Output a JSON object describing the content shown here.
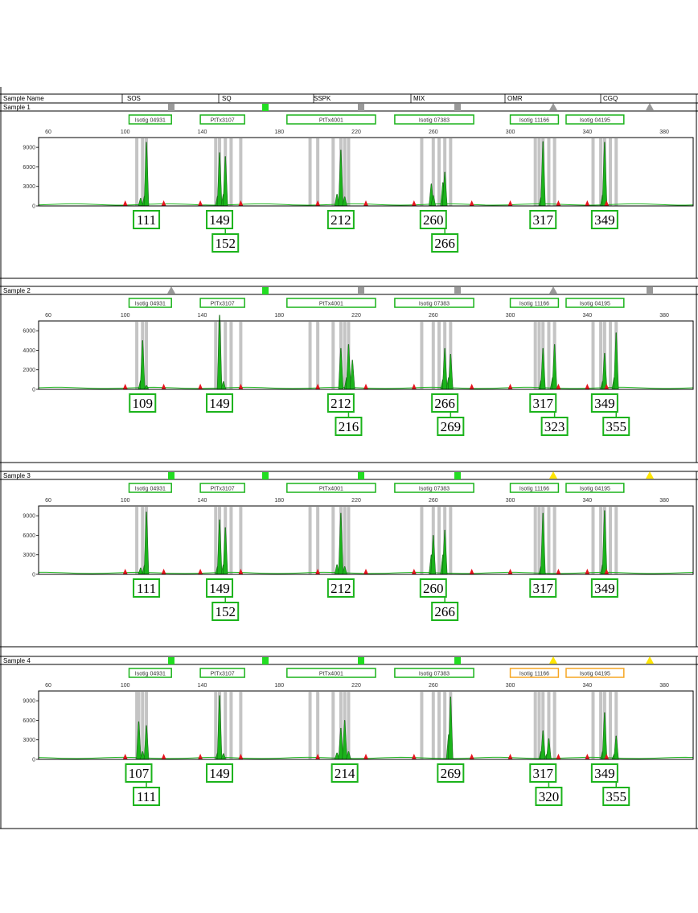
{
  "header": {
    "sample_name_label": "Sample Name",
    "markers": [
      "SOS",
      "SQ",
      "SSPK",
      "MIX",
      "OMR",
      "CGQ"
    ]
  },
  "colors": {
    "peak": "#1bb31b",
    "peak_dark": "#0a3d0a",
    "bin": "#c4c4c4",
    "size_standard": "#e8141e",
    "label_ok": "#1bb31b",
    "label_warn": "#f5a623",
    "status_green": "#22dd22",
    "status_gray": "#999999",
    "status_yellow": "#ffe600"
  },
  "chart_data": [
    {
      "type": "electropherogram",
      "sample": "Sample 1",
      "x_ticks": [
        60,
        100,
        140,
        180,
        220,
        260,
        300,
        340,
        380
      ],
      "xlim": [
        55,
        395
      ],
      "y_ticks": [
        "0",
        "3000",
        "6000",
        "9000"
      ],
      "ylim": [
        0,
        10500
      ],
      "status_flags": [
        "gray-square",
        "green-square",
        "gray-square",
        "gray-square",
        "gray-triangle",
        "gray-triangle"
      ],
      "loci": [
        {
          "label": "Isotig 04931",
          "from": 102,
          "to": 124,
          "flag": "ok"
        },
        {
          "label": "PtTx3107",
          "from": 139,
          "to": 162,
          "flag": "ok"
        },
        {
          "label": "PtTx4001",
          "from": 184,
          "to": 230,
          "flag": "ok"
        },
        {
          "label": "Isotig 07383",
          "from": 240,
          "to": 281,
          "flag": "ok"
        },
        {
          "label": "Isotig 11166",
          "from": 300,
          "to": 325,
          "flag": "ok"
        },
        {
          "label": "Isotig 04195",
          "from": 329,
          "to": 359,
          "flag": "ok"
        }
      ],
      "bins": [
        106,
        109,
        111,
        147,
        149,
        152,
        155,
        160,
        196,
        200,
        208,
        212,
        214,
        216,
        254,
        260,
        263,
        266,
        269,
        313,
        315,
        317,
        320,
        323,
        343,
        347,
        349,
        352,
        355
      ],
      "peaks": [
        [
          108,
          1200
        ],
        [
          110,
          1500
        ],
        [
          111,
          9800
        ],
        [
          148,
          1500
        ],
        [
          149,
          8200
        ],
        [
          151,
          1800
        ],
        [
          152,
          7600
        ],
        [
          210,
          1800
        ],
        [
          212,
          8600
        ],
        [
          214,
          1400
        ],
        [
          259,
          3400
        ],
        [
          260,
          1600
        ],
        [
          265,
          3600
        ],
        [
          266,
          5200
        ],
        [
          316,
          1300
        ],
        [
          317,
          9900
        ],
        [
          348,
          1700
        ],
        [
          349,
          9800
        ]
      ],
      "size_standard": [
        100,
        120,
        139,
        160,
        200,
        225,
        250,
        280,
        300,
        325,
        340,
        350
      ],
      "calls": [
        {
          "label": "111",
          "x": 111,
          "row": 0
        },
        {
          "label": "149",
          "x": 149,
          "row": 0
        },
        {
          "label": "212",
          "x": 212,
          "row": 0
        },
        {
          "label": "260",
          "x": 260,
          "row": 0
        },
        {
          "label": "317",
          "x": 317,
          "row": 0
        },
        {
          "label": "349",
          "x": 349,
          "row": 0
        },
        {
          "label": "152",
          "x": 152,
          "row": 1
        },
        {
          "label": "266",
          "x": 266,
          "row": 1
        }
      ]
    },
    {
      "type": "electropherogram",
      "sample": "Sample 2",
      "x_ticks": [
        60,
        100,
        140,
        180,
        220,
        260,
        300,
        340,
        380
      ],
      "xlim": [
        55,
        395
      ],
      "y_ticks": [
        "0",
        "2000",
        "4000",
        "6000"
      ],
      "ylim": [
        0,
        7000
      ],
      "status_flags": [
        "gray-triangle",
        "green-square",
        "gray-square",
        "gray-square",
        "gray-triangle",
        "gray-square"
      ],
      "loci": [
        {
          "label": "Isotig 04931",
          "from": 102,
          "to": 124,
          "flag": "ok"
        },
        {
          "label": "PtTx3107",
          "from": 139,
          "to": 162,
          "flag": "ok"
        },
        {
          "label": "PtTx4001",
          "from": 184,
          "to": 230,
          "flag": "ok"
        },
        {
          "label": "Isotig 07383",
          "from": 240,
          "to": 281,
          "flag": "ok"
        },
        {
          "label": "Isotig 11166",
          "from": 300,
          "to": 325,
          "flag": "ok"
        },
        {
          "label": "Isotig 04195",
          "from": 329,
          "to": 359,
          "flag": "ok"
        }
      ],
      "bins": [
        106,
        109,
        111,
        147,
        149,
        152,
        155,
        160,
        196,
        200,
        208,
        212,
        214,
        216,
        254,
        260,
        263,
        266,
        269,
        313,
        315,
        317,
        320,
        323,
        343,
        347,
        349,
        352,
        355
      ],
      "peaks": [
        [
          108,
          900
        ],
        [
          109,
          5000
        ],
        [
          111,
          400
        ],
        [
          149,
          7600
        ],
        [
          151,
          800
        ],
        [
          212,
          4200
        ],
        [
          215,
          1200
        ],
        [
          216,
          4600
        ],
        [
          218,
          3000
        ],
        [
          265,
          1000
        ],
        [
          266,
          4200
        ],
        [
          268,
          1200
        ],
        [
          269,
          3600
        ],
        [
          316,
          900
        ],
        [
          317,
          4200
        ],
        [
          322,
          1200
        ],
        [
          323,
          4600
        ],
        [
          348,
          800
        ],
        [
          349,
          3700
        ],
        [
          354,
          1200
        ],
        [
          355,
          5800
        ]
      ],
      "size_standard": [
        100,
        120,
        139,
        160,
        200,
        225,
        250,
        280,
        300,
        325,
        340,
        350
      ],
      "calls": [
        {
          "label": "109",
          "x": 109,
          "row": 0
        },
        {
          "label": "149",
          "x": 149,
          "row": 0
        },
        {
          "label": "212",
          "x": 212,
          "row": 0
        },
        {
          "label": "266",
          "x": 266,
          "row": 0
        },
        {
          "label": "317",
          "x": 317,
          "row": 0
        },
        {
          "label": "349",
          "x": 349,
          "row": 0
        },
        {
          "label": "216",
          "x": 216,
          "row": 1
        },
        {
          "label": "269",
          "x": 269,
          "row": 1
        },
        {
          "label": "323",
          "x": 323,
          "row": 1
        },
        {
          "label": "355",
          "x": 355,
          "row": 1
        }
      ]
    },
    {
      "type": "electropherogram",
      "sample": "Sample 3",
      "x_ticks": [
        60,
        100,
        140,
        180,
        220,
        260,
        300,
        340,
        380
      ],
      "xlim": [
        55,
        395
      ],
      "y_ticks": [
        "0",
        "3000",
        "6000",
        "9000"
      ],
      "ylim": [
        0,
        10500
      ],
      "status_flags": [
        "green-square",
        "green-square",
        "green-square",
        "green-square",
        "yellow-triangle",
        "yellow-triangle"
      ],
      "loci": [
        {
          "label": "Isotig 04931",
          "from": 102,
          "to": 124,
          "flag": "ok"
        },
        {
          "label": "PtTx3107",
          "from": 139,
          "to": 162,
          "flag": "ok"
        },
        {
          "label": "PtTx4001",
          "from": 184,
          "to": 230,
          "flag": "ok"
        },
        {
          "label": "Isotig 07383",
          "from": 240,
          "to": 281,
          "flag": "ok"
        },
        {
          "label": "Isotig 11166",
          "from": 300,
          "to": 325,
          "flag": "ok"
        },
        {
          "label": "Isotig 04195",
          "from": 329,
          "to": 359,
          "flag": "ok"
        }
      ],
      "bins": [
        106,
        109,
        111,
        147,
        149,
        152,
        155,
        160,
        196,
        200,
        208,
        212,
        214,
        216,
        254,
        260,
        263,
        266,
        269,
        313,
        315,
        317,
        320,
        323,
        343,
        347,
        349,
        352,
        355
      ],
      "peaks": [
        [
          108,
          1000
        ],
        [
          110,
          1400
        ],
        [
          111,
          9600
        ],
        [
          148,
          1200
        ],
        [
          149,
          8400
        ],
        [
          151,
          1500
        ],
        [
          152,
          7200
        ],
        [
          210,
          1500
        ],
        [
          212,
          9400
        ],
        [
          214,
          1200
        ],
        [
          259,
          3000
        ],
        [
          260,
          6000
        ],
        [
          265,
          3000
        ],
        [
          266,
          6800
        ],
        [
          316,
          1200
        ],
        [
          317,
          9400
        ],
        [
          348,
          1500
        ],
        [
          349,
          9800
        ]
      ],
      "size_standard": [
        100,
        120,
        139,
        160,
        200,
        225,
        250,
        280,
        300,
        325,
        340,
        350
      ],
      "calls": [
        {
          "label": "111",
          "x": 111,
          "row": 0
        },
        {
          "label": "149",
          "x": 149,
          "row": 0
        },
        {
          "label": "212",
          "x": 212,
          "row": 0
        },
        {
          "label": "260",
          "x": 260,
          "row": 0
        },
        {
          "label": "317",
          "x": 317,
          "row": 0
        },
        {
          "label": "349",
          "x": 349,
          "row": 0
        },
        {
          "label": "152",
          "x": 152,
          "row": 1
        },
        {
          "label": "266",
          "x": 266,
          "row": 1
        }
      ]
    },
    {
      "type": "electropherogram",
      "sample": "Sample 4",
      "x_ticks": [
        60,
        100,
        140,
        180,
        220,
        260,
        300,
        340,
        380
      ],
      "xlim": [
        55,
        395
      ],
      "y_ticks": [
        "0",
        "3000",
        "6000",
        "9000"
      ],
      "ylim": [
        0,
        10500
      ],
      "status_flags": [
        "green-square",
        "green-square",
        "green-square",
        "green-square",
        "yellow-triangle",
        "yellow-triangle"
      ],
      "loci": [
        {
          "label": "Isotig 04931",
          "from": 102,
          "to": 124,
          "flag": "ok"
        },
        {
          "label": "PtTx3107",
          "from": 139,
          "to": 162,
          "flag": "ok"
        },
        {
          "label": "PtTx4001",
          "from": 184,
          "to": 230,
          "flag": "ok"
        },
        {
          "label": "Isotig 07383",
          "from": 240,
          "to": 281,
          "flag": "ok"
        },
        {
          "label": "Isotig 11166",
          "from": 300,
          "to": 325,
          "flag": "warn"
        },
        {
          "label": "Isotig 04195",
          "from": 329,
          "to": 359,
          "flag": "warn"
        }
      ],
      "bins": [
        106,
        107,
        109,
        111,
        147,
        149,
        152,
        155,
        160,
        196,
        200,
        208,
        212,
        214,
        216,
        254,
        260,
        263,
        266,
        269,
        313,
        315,
        317,
        320,
        323,
        343,
        347,
        349,
        352,
        355
      ],
      "peaks": [
        [
          107,
          5800
        ],
        [
          109,
          1200
        ],
        [
          111,
          5200
        ],
        [
          148,
          1000
        ],
        [
          149,
          9800
        ],
        [
          151,
          900
        ],
        [
          210,
          1000
        ],
        [
          212,
          4800
        ],
        [
          214,
          6000
        ],
        [
          216,
          1200
        ],
        [
          268,
          3800
        ],
        [
          269,
          9600
        ],
        [
          316,
          1200
        ],
        [
          317,
          4400
        ],
        [
          319,
          800
        ],
        [
          320,
          3200
        ],
        [
          348,
          1200
        ],
        [
          349,
          7200
        ],
        [
          354,
          800
        ],
        [
          355,
          3600
        ]
      ],
      "size_standard": [
        100,
        120,
        139,
        160,
        200,
        225,
        250,
        280,
        300,
        325,
        340,
        350
      ],
      "calls": [
        {
          "label": "107",
          "x": 107,
          "row": 0
        },
        {
          "label": "149",
          "x": 149,
          "row": 0
        },
        {
          "label": "214",
          "x": 214,
          "row": 0
        },
        {
          "label": "269",
          "x": 269,
          "row": 0
        },
        {
          "label": "317",
          "x": 317,
          "row": 0
        },
        {
          "label": "349",
          "x": 349,
          "row": 0
        },
        {
          "label": "111",
          "x": 111,
          "row": 1
        },
        {
          "label": "320",
          "x": 320,
          "row": 1
        },
        {
          "label": "355",
          "x": 355,
          "row": 1
        }
      ]
    }
  ]
}
